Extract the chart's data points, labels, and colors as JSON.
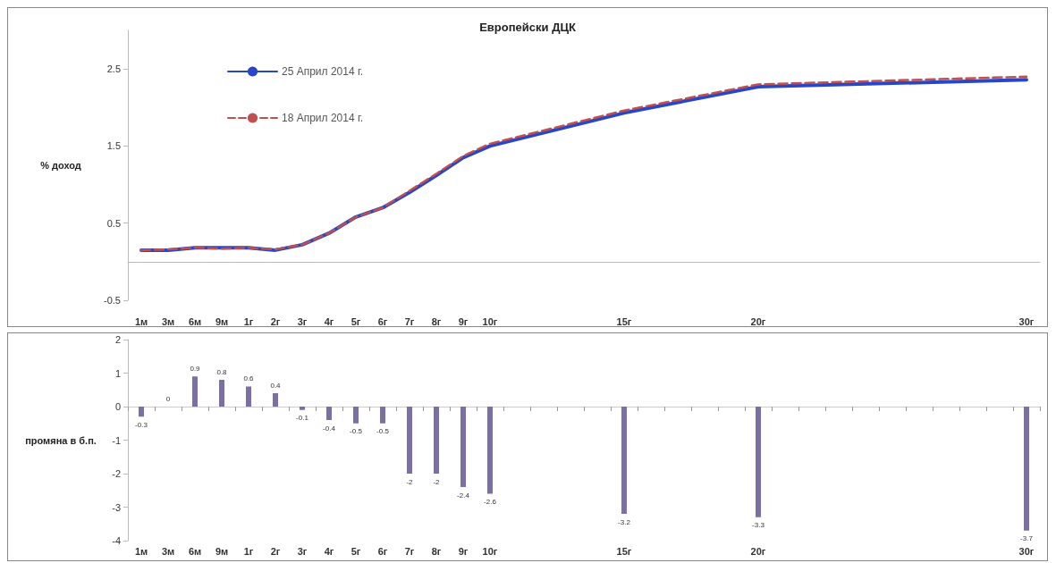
{
  "chart_data": [
    {
      "type": "line",
      "title": "Европейски ДЦК",
      "ylabel": "% доход",
      "categories": [
        "1м",
        "3м",
        "6м",
        "9м",
        "1г",
        "2г",
        "3г",
        "4г",
        "5г",
        "6г",
        "7г",
        "8г",
        "9г",
        "10г",
        null,
        null,
        null,
        null,
        "15г",
        null,
        null,
        null,
        null,
        "20г",
        null,
        null,
        null,
        null,
        null,
        null,
        null,
        null,
        null,
        "30г"
      ],
      "series": [
        {
          "name": "25 Април 2014 г.",
          "color": "#2846c8",
          "line_style": "solid",
          "values": [
            0.15,
            0.15,
            0.18,
            0.18,
            0.18,
            0.15,
            0.22,
            0.37,
            0.58,
            0.7,
            0.9,
            1.12,
            1.35,
            1.5,
            null,
            null,
            null,
            null,
            1.93,
            null,
            null,
            null,
            null,
            2.27,
            null,
            null,
            null,
            null,
            null,
            null,
            null,
            null,
            null,
            2.36
          ]
        },
        {
          "name": "18 Април 2014 г.",
          "color": "#c0504d",
          "line_style": "dashed",
          "values": [
            0.15,
            0.16,
            0.18,
            0.17,
            0.18,
            0.16,
            0.22,
            0.37,
            0.58,
            0.7,
            0.92,
            1.14,
            1.37,
            1.53,
            null,
            null,
            null,
            null,
            1.96,
            null,
            null,
            null,
            null,
            2.3,
            null,
            null,
            null,
            null,
            null,
            null,
            null,
            null,
            null,
            2.4
          ]
        }
      ],
      "ylim": [
        -0.5,
        3
      ],
      "yticks": [
        -0.5,
        0.5,
        1.5,
        2.5
      ],
      "legend": "top left",
      "marker": "none"
    },
    {
      "type": "bar",
      "ylabel": "промяна в б.п.",
      "categories": [
        "1м",
        "3м",
        "6м",
        "9м",
        "1г",
        "2г",
        "3г",
        "4г",
        "5г",
        "6г",
        "7г",
        "8г",
        "9г",
        "10г",
        null,
        null,
        null,
        null,
        "15г",
        null,
        null,
        null,
        null,
        "20г",
        null,
        null,
        null,
        null,
        null,
        null,
        null,
        null,
        null,
        "30г"
      ],
      "values": [
        -0.3,
        0,
        0.9,
        0.8,
        0.6,
        0.4,
        -0.1,
        -0.4,
        -0.5,
        -0.5,
        -2,
        -2,
        -2.4,
        -2.6,
        null,
        null,
        null,
        null,
        -3.2,
        null,
        null,
        null,
        null,
        -3.3,
        null,
        null,
        null,
        null,
        null,
        null,
        null,
        null,
        null,
        -3.7
      ],
      "color": "#7b6fa6",
      "ylim": [
        -4,
        2
      ],
      "yticks": [
        -4,
        -3,
        -2,
        -1,
        0,
        1,
        2
      ],
      "data_labels": true
    }
  ]
}
